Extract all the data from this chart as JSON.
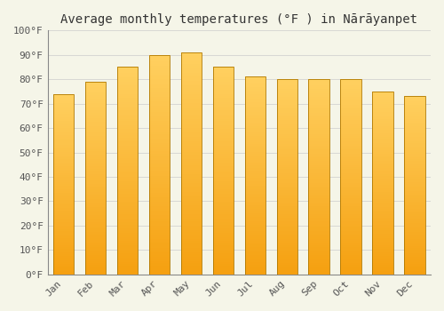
{
  "title": "Average monthly temperatures (°F ) in Nārāyanpet",
  "months": [
    "Jan",
    "Feb",
    "Mar",
    "Apr",
    "May",
    "Jun",
    "Jul",
    "Aug",
    "Sep",
    "Oct",
    "Nov",
    "Dec"
  ],
  "values": [
    74,
    79,
    85,
    90,
    91,
    85,
    81,
    80,
    80,
    80,
    75,
    73
  ],
  "bar_color_top": "#FFD060",
  "bar_color_bottom": "#F5A010",
  "bar_edge_color": "#B07800",
  "background_color": "#F5F5E8",
  "grid_color": "#cccccc",
  "ylim": [
    0,
    100
  ],
  "yticks": [
    0,
    10,
    20,
    30,
    40,
    50,
    60,
    70,
    80,
    90,
    100
  ],
  "ytick_labels": [
    "0°F",
    "10°F",
    "20°F",
    "30°F",
    "40°F",
    "50°F",
    "60°F",
    "70°F",
    "80°F",
    "90°F",
    "100°F"
  ],
  "title_fontsize": 10,
  "tick_fontsize": 8,
  "bar_width": 0.65,
  "n_grad": 100
}
